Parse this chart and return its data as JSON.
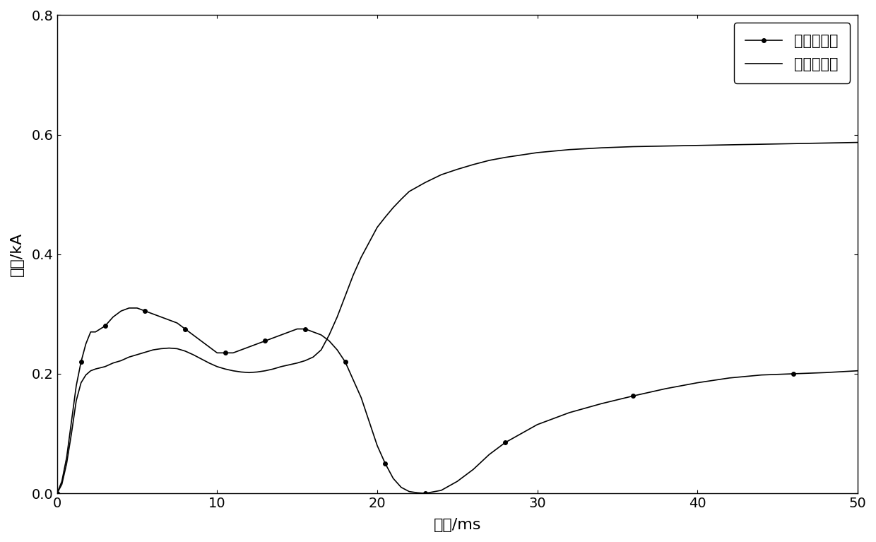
{
  "ylabel": "电流/kA",
  "xlabel": "时间/ms",
  "xlim": [
    0,
    50
  ],
  "ylim": [
    0,
    0.8
  ],
  "xticks": [
    0,
    10,
    20,
    30,
    40,
    50
  ],
  "yticks": [
    0,
    0.2,
    0.4,
    0.6,
    0.8
  ],
  "legend_labels": [
    "方向动作量",
    "方向制动量"
  ],
  "line_color": "#000000",
  "background_color": "#ffffff",
  "curve1_x": [
    0,
    0.3,
    0.6,
    0.9,
    1.2,
    1.5,
    1.8,
    2.1,
    2.4,
    2.7,
    3.0,
    3.5,
    4.0,
    4.5,
    5.0,
    5.5,
    6.0,
    6.5,
    7.0,
    7.5,
    8.0,
    8.5,
    9.0,
    9.5,
    10.0,
    10.5,
    11.0,
    11.5,
    12.0,
    12.5,
    13.0,
    13.5,
    14.0,
    14.5,
    15.0,
    15.5,
    16.0,
    16.5,
    17.0,
    17.5,
    18.0,
    18.5,
    19.0,
    19.5,
    20.0,
    20.5,
    21.0,
    21.5,
    22.0,
    22.5,
    23.0,
    24.0,
    25.0,
    26.0,
    27.0,
    28.0,
    29.0,
    30.0,
    32.0,
    34.0,
    36.0,
    38.0,
    40.0,
    42.0,
    44.0,
    46.0,
    48.0,
    50.0
  ],
  "curve1_y": [
    0,
    0.02,
    0.06,
    0.12,
    0.18,
    0.22,
    0.25,
    0.27,
    0.27,
    0.275,
    0.28,
    0.295,
    0.305,
    0.31,
    0.31,
    0.305,
    0.3,
    0.295,
    0.29,
    0.285,
    0.275,
    0.265,
    0.255,
    0.245,
    0.235,
    0.235,
    0.235,
    0.24,
    0.245,
    0.25,
    0.255,
    0.26,
    0.265,
    0.27,
    0.275,
    0.275,
    0.27,
    0.265,
    0.255,
    0.24,
    0.22,
    0.19,
    0.16,
    0.12,
    0.08,
    0.05,
    0.025,
    0.01,
    0.003,
    0.001,
    0.0,
    0.005,
    0.02,
    0.04,
    0.065,
    0.085,
    0.1,
    0.115,
    0.135,
    0.15,
    0.163,
    0.175,
    0.185,
    0.193,
    0.198,
    0.2,
    0.202,
    0.205
  ],
  "curve2_x": [
    0,
    0.3,
    0.6,
    0.9,
    1.2,
    1.5,
    1.8,
    2.1,
    2.4,
    2.7,
    3.0,
    3.5,
    4.0,
    4.5,
    5.0,
    5.5,
    6.0,
    6.5,
    7.0,
    7.5,
    8.0,
    8.5,
    9.0,
    9.5,
    10.0,
    10.5,
    11.0,
    11.5,
    12.0,
    12.5,
    13.0,
    13.5,
    14.0,
    14.5,
    15.0,
    15.5,
    16.0,
    16.5,
    17.0,
    17.5,
    18.0,
    18.5,
    19.0,
    19.5,
    20.0,
    20.5,
    21.0,
    21.5,
    22.0,
    23.0,
    24.0,
    25.0,
    26.0,
    27.0,
    28.0,
    29.0,
    30.0,
    32.0,
    34.0,
    36.0,
    38.0,
    40.0,
    42.0,
    44.0,
    46.0,
    48.0,
    50.0
  ],
  "curve2_y": [
    0,
    0.015,
    0.05,
    0.1,
    0.155,
    0.185,
    0.198,
    0.205,
    0.208,
    0.21,
    0.212,
    0.218,
    0.222,
    0.228,
    0.232,
    0.236,
    0.24,
    0.242,
    0.243,
    0.242,
    0.238,
    0.232,
    0.225,
    0.218,
    0.212,
    0.208,
    0.205,
    0.203,
    0.202,
    0.203,
    0.205,
    0.208,
    0.212,
    0.215,
    0.218,
    0.222,
    0.228,
    0.24,
    0.265,
    0.295,
    0.33,
    0.365,
    0.395,
    0.42,
    0.445,
    0.462,
    0.478,
    0.492,
    0.505,
    0.52,
    0.533,
    0.542,
    0.55,
    0.557,
    0.562,
    0.566,
    0.57,
    0.575,
    0.578,
    0.58,
    0.581,
    0.582,
    0.583,
    0.584,
    0.585,
    0.586,
    0.587
  ]
}
